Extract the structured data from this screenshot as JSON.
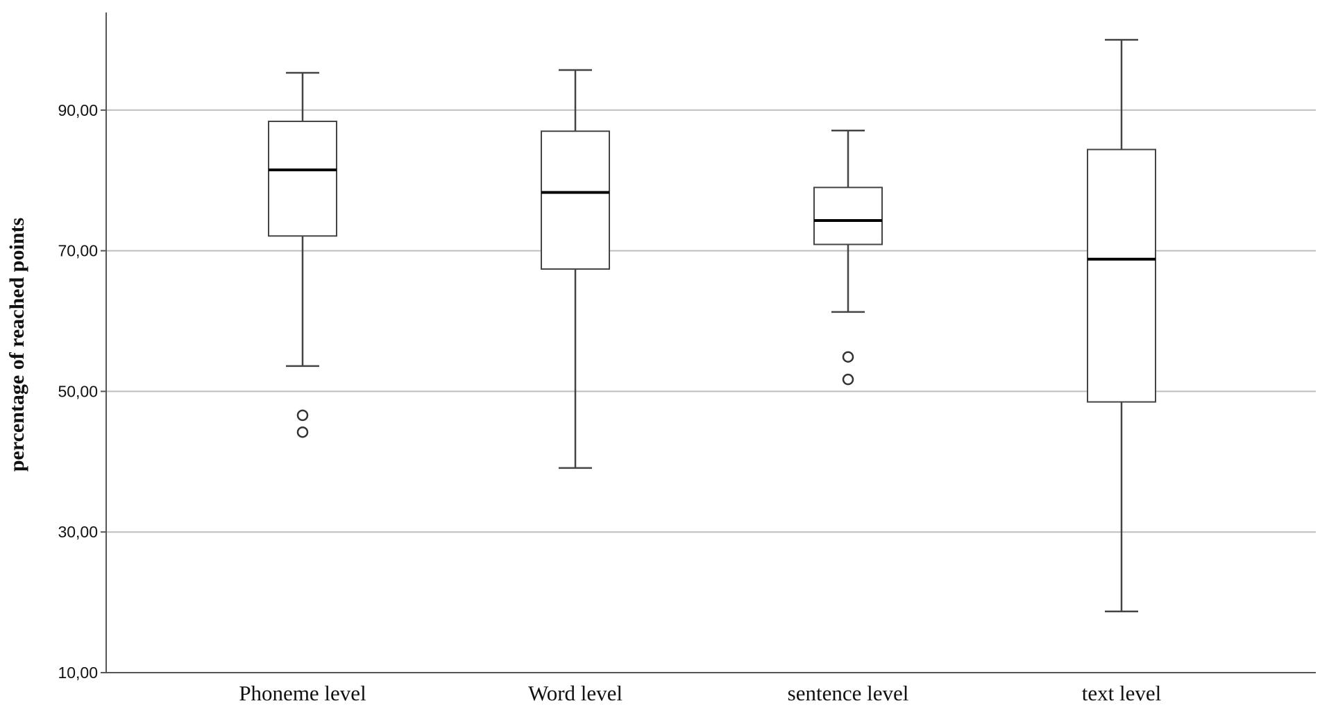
{
  "chart_data": {
    "type": "boxplot",
    "title": "",
    "xlabel": "",
    "ylabel": "percentage of reached points",
    "ylim": [
      10,
      100
    ],
    "yticks": [
      10,
      30,
      50,
      70,
      90
    ],
    "ytick_labels": [
      "10,00",
      "30,00",
      "50,00",
      "70,00",
      "90,00"
    ],
    "grid": true,
    "categories": [
      "Phoneme level",
      "Word level",
      "sentence level",
      "text level"
    ],
    "boxes": [
      {
        "category": "Phoneme level",
        "whisker_low": 53.6,
        "q1": 72.1,
        "median": 81.5,
        "q3": 88.4,
        "whisker_high": 95.3,
        "outliers": [
          46.6,
          44.2
        ]
      },
      {
        "category": "Word level",
        "whisker_low": 39.1,
        "q1": 67.4,
        "median": 78.3,
        "q3": 87.0,
        "whisker_high": 95.7,
        "outliers": []
      },
      {
        "category": "sentence level",
        "whisker_low": 61.3,
        "q1": 70.9,
        "median": 74.3,
        "q3": 79.0,
        "whisker_high": 87.1,
        "outliers": [
          54.9,
          51.7
        ]
      },
      {
        "category": "text level",
        "whisker_low": 18.7,
        "q1": 48.5,
        "median": 68.8,
        "q3": 84.4,
        "whisker_high": 100.0,
        "outliers": []
      }
    ],
    "colors": {
      "box_fill": "#ffffff",
      "box_stroke": "#444444",
      "median": "#000000",
      "grid": "#bdbdbd",
      "axis": "#555555"
    }
  }
}
